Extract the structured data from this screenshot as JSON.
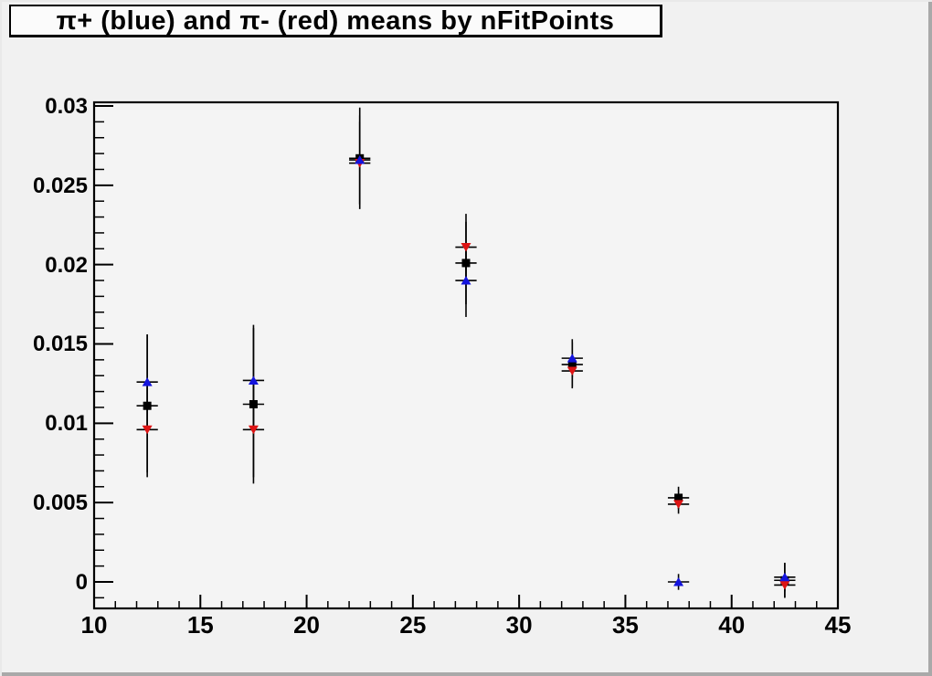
{
  "chart_data": {
    "type": "scatter",
    "title": "π+ (blue) and π- (red) means by nFitPoints",
    "x": [
      12.5,
      17.5,
      22.5,
      27.5,
      32.5,
      37.5,
      42.5
    ],
    "xerr": 0.5,
    "series": [
      {
        "name": "combined mean (black squares)",
        "marker": "square",
        "color": "#000000",
        "values": [
          0.0111,
          0.0112,
          0.0267,
          0.0201,
          0.0137,
          0.0053,
          0.0001
        ],
        "yerr": [
          0.0045,
          0.005,
          0.0032,
          0.0026,
          0.0014,
          0.0007,
          0.0011
        ]
      },
      {
        "name": "pi- mean (red down-triangles)",
        "marker": "triangle-down",
        "color": "#dd1414",
        "values": [
          0.0096,
          0.0096,
          0.0264,
          0.0211,
          0.0133,
          0.0049,
          -0.0002
        ],
        "yerr": [
          0.0027,
          0.003,
          0.0026,
          0.0021,
          0.0011,
          0.0006,
          0.0008
        ]
      },
      {
        "name": "pi+ mean (blue up-triangles)",
        "marker": "triangle-up",
        "color": "#1414dd",
        "values": [
          0.0126,
          0.0127,
          0.0266,
          0.019,
          0.0141,
          0.0,
          0.0003
        ],
        "yerr": [
          0.003,
          0.0033,
          0.0028,
          0.0023,
          0.0012,
          0.0005,
          0.0009
        ]
      }
    ],
    "xlim": [
      10,
      45
    ],
    "ylim": [
      -0.00167,
      0.03023
    ],
    "xticks": {
      "values": [
        10,
        15,
        20,
        25,
        30,
        35,
        40,
        45
      ],
      "labels": [
        "10",
        "15",
        "20",
        "25",
        "30",
        "35",
        "40",
        "45"
      ],
      "minor_step": 1
    },
    "yticks": {
      "values": [
        0,
        0.005,
        0.01,
        0.015,
        0.02,
        0.025,
        0.03
      ],
      "labels": [
        "0",
        "0.005",
        "0.01",
        "0.015",
        "0.02",
        "0.025",
        "0.03"
      ],
      "minor_step": 0.001
    },
    "grid": false,
    "legend": "none",
    "error_bar_color": "#000000",
    "frame_bg": "#f4f4f4",
    "canvas_bg": "#f1f1f1"
  }
}
